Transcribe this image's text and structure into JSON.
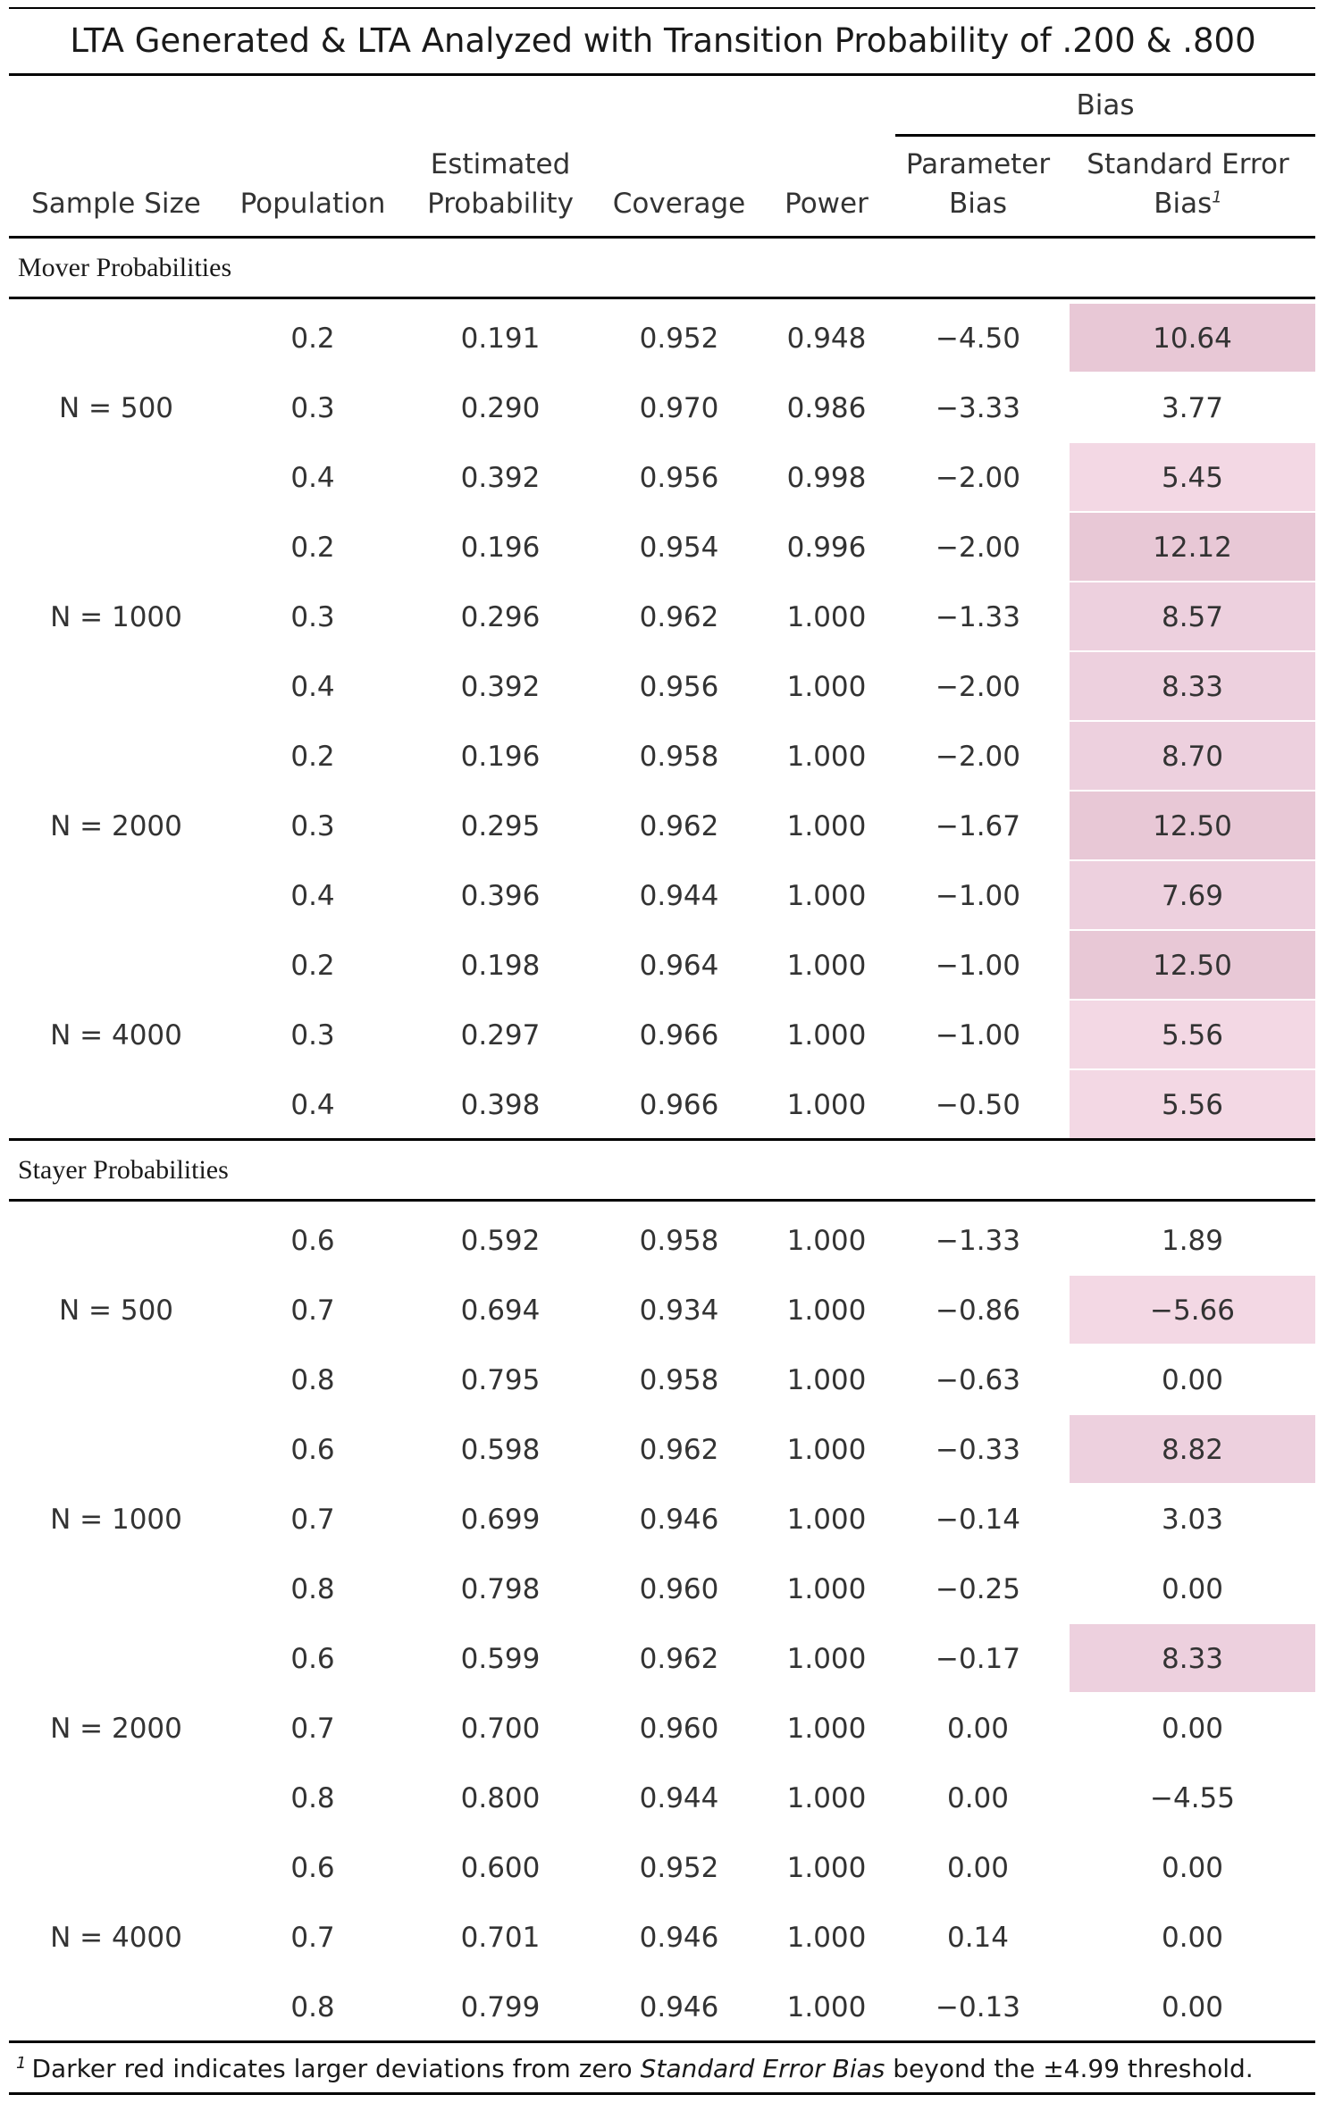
{
  "title": "LTA Generated & LTA Analyzed with Transition Probability of .200 & .800",
  "headers": {
    "group": "Bias",
    "sample_size": "Sample Size",
    "population": "Population",
    "estimated_l1": "Estimated",
    "estimated_l2": "Probability",
    "coverage": "Coverage",
    "power": "Power",
    "param_l1": "Parameter",
    "param_l2": "Bias",
    "se_l1": "Standard Error",
    "se_l2": "Bias",
    "se_sup": "1"
  },
  "sections": [
    {
      "label": "Mover Probabilities",
      "groups": [
        {
          "n": "N = 500",
          "rows": [
            {
              "pop": "0.2",
              "est": "0.191",
              "cov": "0.952",
              "pow": "0.948",
              "pb": "−4.50",
              "seb": "10.64",
              "shade": "dark"
            },
            {
              "pop": "0.3",
              "est": "0.290",
              "cov": "0.970",
              "pow": "0.986",
              "pb": "−3.33",
              "seb": "3.77",
              "shade": "none"
            },
            {
              "pop": "0.4",
              "est": "0.392",
              "cov": "0.956",
              "pow": "0.998",
              "pb": "−2.00",
              "seb": "5.45",
              "shade": "light"
            }
          ]
        },
        {
          "n": "N = 1000",
          "rows": [
            {
              "pop": "0.2",
              "est": "0.196",
              "cov": "0.954",
              "pow": "0.996",
              "pb": "−2.00",
              "seb": "12.12",
              "shade": "dark"
            },
            {
              "pop": "0.3",
              "est": "0.296",
              "cov": "0.962",
              "pow": "1.000",
              "pb": "−1.33",
              "seb": "8.57",
              "shade": "medium"
            },
            {
              "pop": "0.4",
              "est": "0.392",
              "cov": "0.956",
              "pow": "1.000",
              "pb": "−2.00",
              "seb": "8.33",
              "shade": "medium"
            }
          ]
        },
        {
          "n": "N = 2000",
          "rows": [
            {
              "pop": "0.2",
              "est": "0.196",
              "cov": "0.958",
              "pow": "1.000",
              "pb": "−2.00",
              "seb": "8.70",
              "shade": "medium"
            },
            {
              "pop": "0.3",
              "est": "0.295",
              "cov": "0.962",
              "pow": "1.000",
              "pb": "−1.67",
              "seb": "12.50",
              "shade": "dark"
            },
            {
              "pop": "0.4",
              "est": "0.396",
              "cov": "0.944",
              "pow": "1.000",
              "pb": "−1.00",
              "seb": "7.69",
              "shade": "medium"
            }
          ]
        },
        {
          "n": "N = 4000",
          "rows": [
            {
              "pop": "0.2",
              "est": "0.198",
              "cov": "0.964",
              "pow": "1.000",
              "pb": "−1.00",
              "seb": "12.50",
              "shade": "dark"
            },
            {
              "pop": "0.3",
              "est": "0.297",
              "cov": "0.966",
              "pow": "1.000",
              "pb": "−1.00",
              "seb": "5.56",
              "shade": "light"
            },
            {
              "pop": "0.4",
              "est": "0.398",
              "cov": "0.966",
              "pow": "1.000",
              "pb": "−0.50",
              "seb": "5.56",
              "shade": "light"
            }
          ]
        }
      ]
    },
    {
      "label": "Stayer Probabilities",
      "groups": [
        {
          "n": "N = 500",
          "rows": [
            {
              "pop": "0.6",
              "est": "0.592",
              "cov": "0.958",
              "pow": "1.000",
              "pb": "−1.33",
              "seb": "1.89",
              "shade": "none"
            },
            {
              "pop": "0.7",
              "est": "0.694",
              "cov": "0.934",
              "pow": "1.000",
              "pb": "−0.86",
              "seb": "−5.66",
              "shade": "light"
            },
            {
              "pop": "0.8",
              "est": "0.795",
              "cov": "0.958",
              "pow": "1.000",
              "pb": "−0.63",
              "seb": "0.00",
              "shade": "none"
            }
          ]
        },
        {
          "n": "N = 1000",
          "rows": [
            {
              "pop": "0.6",
              "est": "0.598",
              "cov": "0.962",
              "pow": "1.000",
              "pb": "−0.33",
              "seb": "8.82",
              "shade": "medium"
            },
            {
              "pop": "0.7",
              "est": "0.699",
              "cov": "0.946",
              "pow": "1.000",
              "pb": "−0.14",
              "seb": "3.03",
              "shade": "none"
            },
            {
              "pop": "0.8",
              "est": "0.798",
              "cov": "0.960",
              "pow": "1.000",
              "pb": "−0.25",
              "seb": "0.00",
              "shade": "none"
            }
          ]
        },
        {
          "n": "N = 2000",
          "rows": [
            {
              "pop": "0.6",
              "est": "0.599",
              "cov": "0.962",
              "pow": "1.000",
              "pb": "−0.17",
              "seb": "8.33",
              "shade": "medium"
            },
            {
              "pop": "0.7",
              "est": "0.700",
              "cov": "0.960",
              "pow": "1.000",
              "pb": "0.00",
              "seb": "0.00",
              "shade": "none"
            },
            {
              "pop": "0.8",
              "est": "0.800",
              "cov": "0.944",
              "pow": "1.000",
              "pb": "0.00",
              "seb": "−4.55",
              "shade": "none"
            }
          ]
        },
        {
          "n": "N = 4000",
          "rows": [
            {
              "pop": "0.6",
              "est": "0.600",
              "cov": "0.952",
              "pow": "1.000",
              "pb": "0.00",
              "seb": "0.00",
              "shade": "none"
            },
            {
              "pop": "0.7",
              "est": "0.701",
              "cov": "0.946",
              "pow": "1.000",
              "pb": "0.14",
              "seb": "0.00",
              "shade": "none"
            },
            {
              "pop": "0.8",
              "est": "0.799",
              "cov": "0.946",
              "pow": "1.000",
              "pb": "−0.13",
              "seb": "0.00",
              "shade": "none"
            }
          ]
        }
      ]
    }
  ],
  "footnote": {
    "sup": "1",
    "before": "Darker red indicates larger deviations from zero ",
    "emph": "Standard Error Bias",
    "after": " beyond the ±4.99 threshold."
  },
  "colors": {
    "light": "#f3d8e4",
    "medium": "#edd0de",
    "dark": "#e8c8d6",
    "rule": "#000000"
  }
}
